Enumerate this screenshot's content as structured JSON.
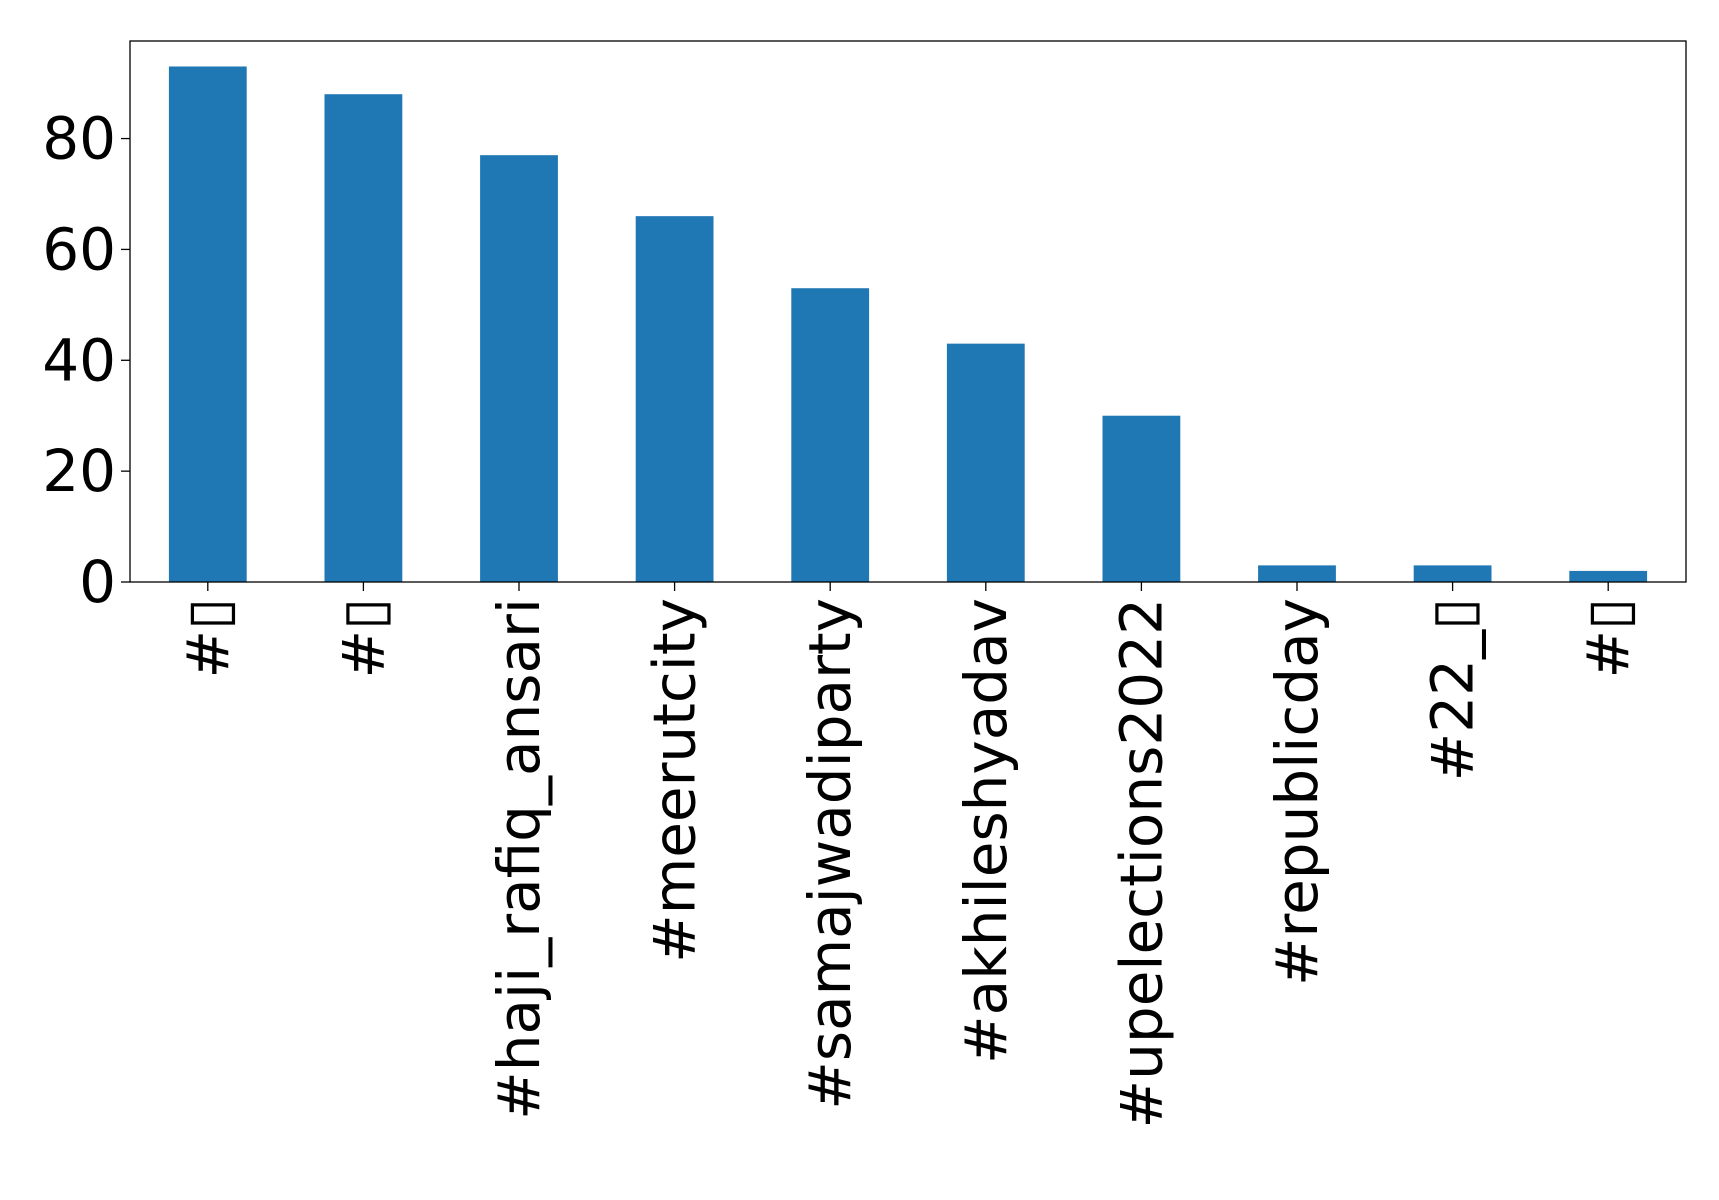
{
  "chart_data": {
    "type": "bar",
    "title": "",
    "xlabel": "",
    "ylabel": "",
    "categories": [
      "#▯",
      "#▯",
      "#haji_rafiq_ansari",
      "#meerutcity",
      "#samajwadiparty",
      "#akhileshyadav",
      "#upelections2022",
      "#republicday",
      "#22_▯",
      "#▯"
    ],
    "values": [
      93,
      88,
      77,
      66,
      53,
      43,
      30,
      3,
      3,
      2
    ],
    "ylim": [
      0,
      97.6
    ],
    "yticks": [
      0,
      20,
      40,
      60,
      80
    ],
    "grid": false,
    "legend": "none",
    "bar_color": "#1f77b4",
    "x_tick_rotation": "vertical"
  }
}
